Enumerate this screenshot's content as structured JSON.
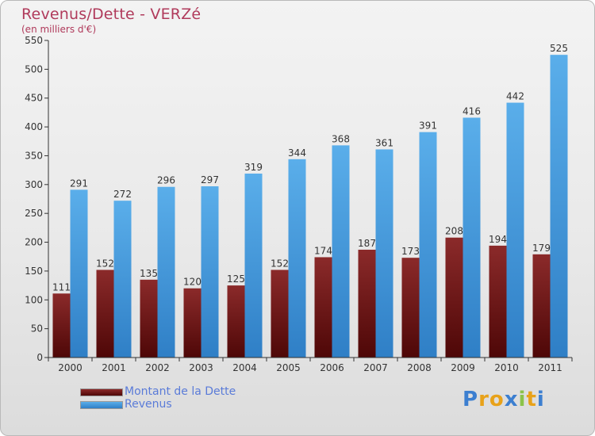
{
  "header": {
    "title": "Revenus/Dette - VERZé",
    "subtitle": "(en milliers d'€)"
  },
  "chart_data": {
    "type": "bar",
    "categories": [
      "2000",
      "2001",
      "2002",
      "2003",
      "2004",
      "2005",
      "2006",
      "2007",
      "2008",
      "2009",
      "2010",
      "2011"
    ],
    "series": [
      {
        "name": "Montant de la Dette",
        "values": [
          111,
          152,
          135,
          120,
          125,
          152,
          174,
          187,
          173,
          208,
          194,
          179
        ],
        "color": "#7a1b1b"
      },
      {
        "name": "Revenus",
        "values": [
          291,
          272,
          296,
          297,
          319,
          344,
          368,
          361,
          391,
          416,
          442,
          525
        ],
        "color": "#4a9fe0"
      }
    ],
    "title": "Revenus/Dette - VERZé",
    "xlabel": "",
    "ylabel": "",
    "ylim": [
      0,
      550
    ],
    "yticks": [
      0,
      50,
      100,
      150,
      200,
      250,
      300,
      350,
      400,
      450,
      500,
      550
    ],
    "grid": false,
    "legend_position": "bottom-left"
  },
  "legend": {
    "items": [
      {
        "label": "Montant de la Dette",
        "color": "#7a1b1b"
      },
      {
        "label": "Revenus",
        "color": "#4a9fe0"
      }
    ]
  },
  "logo": {
    "text": "Proxiti",
    "letters": [
      "P",
      "r",
      "o",
      "x",
      "i",
      "t",
      "i"
    ],
    "colors": [
      "#3c7fd0",
      "#e8a21a",
      "#e8a21a",
      "#3c7fd0",
      "#8bc34a",
      "#e8a21a",
      "#3c7fd0"
    ]
  }
}
